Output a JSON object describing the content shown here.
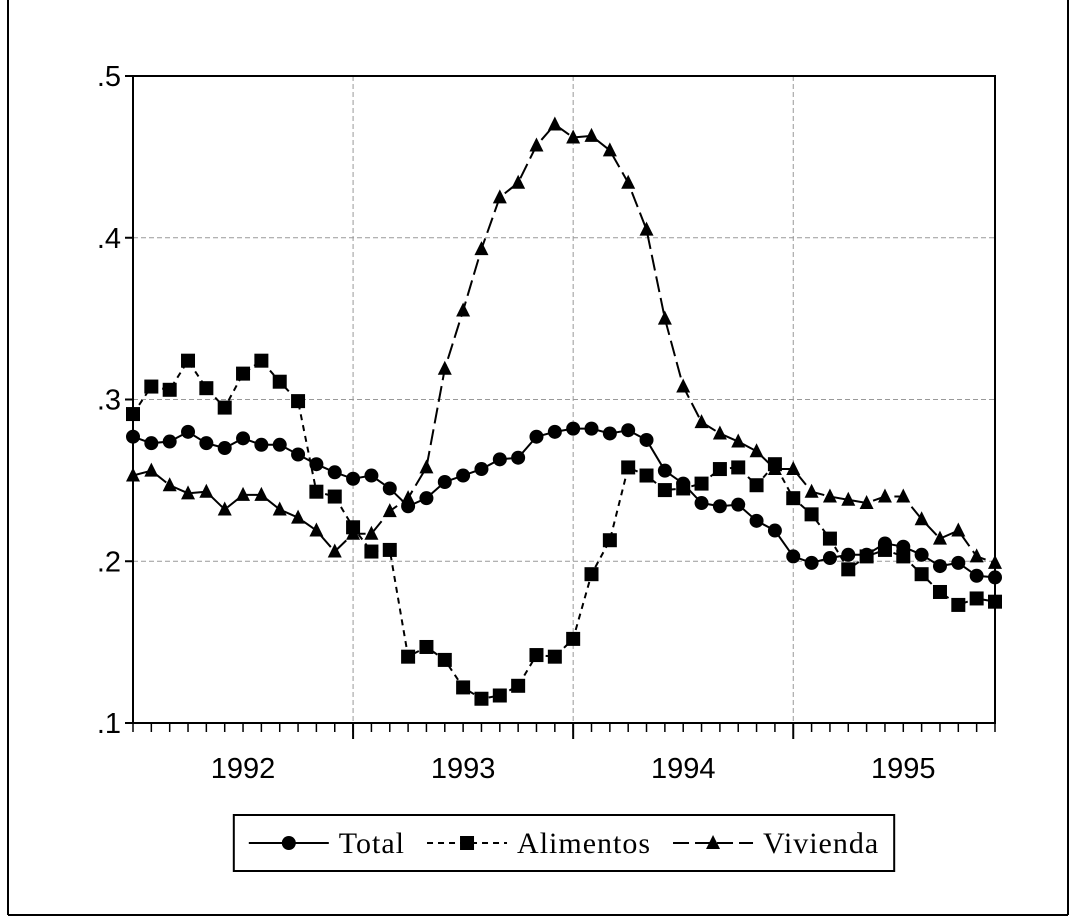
{
  "chart_data": {
    "type": "line",
    "x": [
      1992.0,
      1992.0833,
      1992.1667,
      1992.25,
      1992.3333,
      1992.4167,
      1992.5,
      1992.5833,
      1992.6667,
      1992.75,
      1992.8333,
      1992.9167,
      1993.0,
      1993.0833,
      1993.1667,
      1993.25,
      1993.3333,
      1993.4167,
      1993.5,
      1993.5833,
      1993.6667,
      1993.75,
      1993.8333,
      1993.9167,
      1994.0,
      1994.0833,
      1994.1667,
      1994.25,
      1994.3333,
      1994.4167,
      1994.5,
      1994.5833,
      1994.6667,
      1994.75,
      1994.8333,
      1994.9167,
      1995.0,
      1995.0833,
      1995.1667,
      1995.25,
      1995.3333,
      1995.4167,
      1995.5,
      1995.5833,
      1995.6667,
      1995.75,
      1995.8333,
      1995.9167
    ],
    "xlim": [
      1992.0,
      1995.9167
    ],
    "xticks": [
      {
        "value": 1992.5,
        "label": "1992"
      },
      {
        "value": 1993.5,
        "label": "1993"
      },
      {
        "value": 1994.5,
        "label": "1994"
      },
      {
        "value": 1995.5,
        "label": "1995"
      }
    ],
    "xgrid": [
      1993,
      1994,
      1995
    ],
    "ylim": [
      0.1,
      0.5
    ],
    "yticks": [
      {
        "value": 0.1,
        "label": ".1"
      },
      {
        "value": 0.2,
        "label": ".2"
      },
      {
        "value": 0.3,
        "label": ".3"
      },
      {
        "value": 0.4,
        "label": ".4"
      },
      {
        "value": 0.5,
        "label": ".5"
      }
    ],
    "grid": true,
    "legend_position": "bottom",
    "series": [
      {
        "name": "Total",
        "color": "#000000",
        "dash": "solid",
        "marker": "circle",
        "values": [
          0.277,
          0.273,
          0.274,
          0.28,
          0.273,
          0.27,
          0.276,
          0.272,
          0.272,
          0.266,
          0.26,
          0.255,
          0.251,
          0.253,
          0.245,
          0.234,
          0.239,
          0.249,
          0.253,
          0.257,
          0.263,
          0.264,
          0.277,
          0.28,
          0.282,
          0.282,
          0.279,
          0.281,
          0.275,
          0.256,
          0.248,
          0.236,
          0.234,
          0.235,
          0.225,
          0.219,
          0.203,
          0.199,
          0.202,
          0.204,
          0.204,
          0.211,
          0.209,
          0.204,
          0.197,
          0.199,
          0.191,
          0.19
        ]
      },
      {
        "name": "Alimentos",
        "color": "#000000",
        "dash": "short",
        "marker": "square",
        "values": [
          0.291,
          0.308,
          0.306,
          0.324,
          0.307,
          0.295,
          0.316,
          0.324,
          0.311,
          0.299,
          0.243,
          0.24,
          0.221,
          0.206,
          0.207,
          0.141,
          0.147,
          0.139,
          0.122,
          0.115,
          0.117,
          0.123,
          0.142,
          0.141,
          0.152,
          0.192,
          0.213,
          0.258,
          0.253,
          0.244,
          0.245,
          0.248,
          0.257,
          0.258,
          0.247,
          0.26,
          0.239,
          0.229,
          0.214,
          0.195,
          0.203,
          0.207,
          0.203,
          0.192,
          0.181,
          0.173,
          0.177,
          0.175
        ]
      },
      {
        "name": "Vivienda",
        "color": "#000000",
        "dash": "long",
        "marker": "triangle",
        "values": [
          0.253,
          0.256,
          0.247,
          0.242,
          0.243,
          0.232,
          0.241,
          0.241,
          0.232,
          0.227,
          0.219,
          0.206,
          0.217,
          0.217,
          0.231,
          0.239,
          0.258,
          0.319,
          0.355,
          0.393,
          0.425,
          0.434,
          0.457,
          0.47,
          0.462,
          0.463,
          0.454,
          0.434,
          0.405,
          0.35,
          0.308,
          0.286,
          0.279,
          0.274,
          0.268,
          0.257,
          0.257,
          0.243,
          0.24,
          0.238,
          0.236,
          0.24,
          0.24,
          0.226,
          0.214,
          0.219,
          0.203,
          0.199
        ]
      }
    ]
  }
}
